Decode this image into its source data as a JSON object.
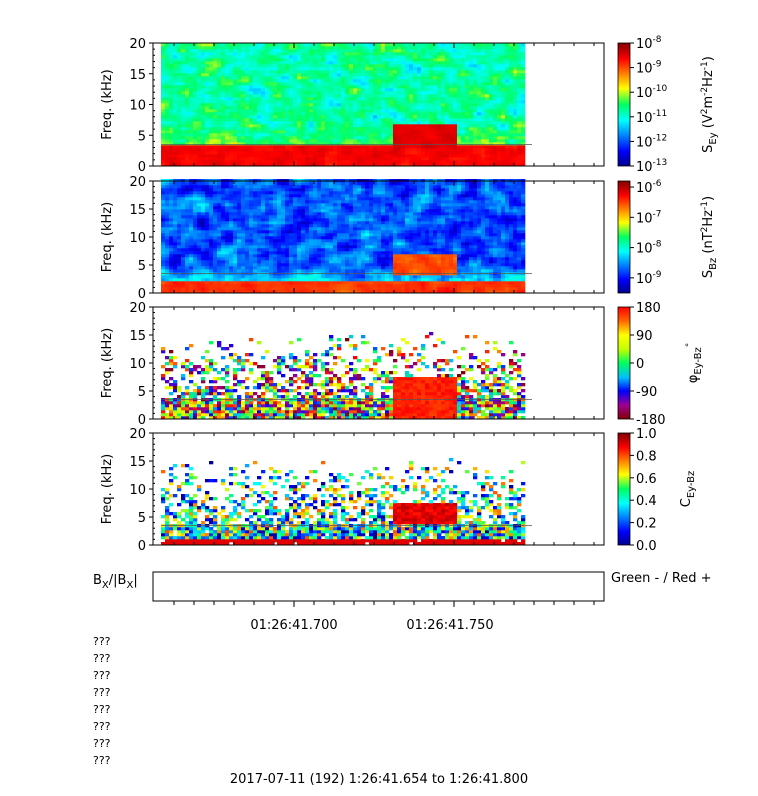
{
  "chart_data": [
    {
      "type": "heatmap",
      "ylabel": "Freq. (kHz)",
      "y_ticks": [
        0,
        5,
        10,
        15,
        20
      ],
      "ylim": [
        0,
        20
      ],
      "colorbar": {
        "scale": "log",
        "tick_labels": [
          "10-8",
          "10-9",
          "10-10",
          "10-11",
          "10-12",
          "10-13"
        ],
        "range_exponents": [
          -13,
          -8
        ],
        "label": {
          "symbol": "S",
          "subscript": "Ey",
          "units_open": "(V",
          "units_sup1": "2",
          "units_mid": "m",
          "units_sup2": "-2",
          "units_hz": "Hz",
          "units_sup3": "-1",
          "units_close": ")"
        }
      },
      "features": {
        "background_level": 0.45,
        "low_band_kHz": [
          0,
          3.5
        ],
        "burst_center_x": 0.72,
        "burst_freq_kHz": [
          3,
          7
        ],
        "reference_line_kHz": 3.5
      }
    },
    {
      "type": "heatmap",
      "ylabel": "Freq. (kHz)",
      "y_ticks": [
        0,
        5,
        10,
        15,
        20
      ],
      "ylim": [
        0,
        20
      ],
      "colorbar": {
        "scale": "log",
        "tick_labels": [
          "10-6",
          "10-7",
          "10-8",
          "10-9"
        ],
        "range_exponents": [
          -9.5,
          -5.8
        ],
        "label": {
          "symbol": "S",
          "subscript": "Bz",
          "units_open": "(nT",
          "units_sup1": "2",
          "units_hz": "Hz",
          "units_sup3": "-1",
          "units_close": ")"
        }
      },
      "features": {
        "background_level": 0.2,
        "low_band_kHz": [
          0,
          2
        ],
        "burst_center_x": 0.72,
        "burst_freq_kHz": [
          3,
          7
        ],
        "reference_line_kHz": 3.5
      }
    },
    {
      "type": "heatmap",
      "ylabel": "Freq. (kHz)",
      "y_ticks": [
        0,
        5,
        10,
        15,
        20
      ],
      "ylim": [
        0,
        20
      ],
      "colorbar": {
        "scale": "linear",
        "tick_labels": [
          "180",
          "90",
          "0",
          "-90",
          "-180"
        ],
        "range": [
          -180,
          180
        ],
        "label": {
          "symbol": "φ",
          "subscript": "Ey-Bz",
          "degree": "°"
        }
      },
      "features": {
        "sparse": true,
        "burst_center_x": 0.72,
        "burst_freq_kHz": [
          0,
          7.5
        ],
        "reference_line_kHz": 3.5
      }
    },
    {
      "type": "heatmap",
      "ylabel": "Freq. (kHz)",
      "y_ticks": [
        0,
        5,
        10,
        15,
        20
      ],
      "ylim": [
        0,
        20
      ],
      "colorbar": {
        "scale": "linear",
        "tick_labels": [
          "1.0",
          "0.8",
          "0.6",
          "0.4",
          "0.2",
          "0.0"
        ],
        "range": [
          0,
          1
        ],
        "label": {
          "symbol": "C",
          "subscript": "Ey-Bz"
        }
      },
      "features": {
        "sparse": true,
        "burst_center_x": 0.72,
        "burst_freq_kHz": [
          3.5,
          7.5
        ],
        "reference_line_kHz": 3.5
      }
    }
  ],
  "bx_panel": {
    "label_main": "B",
    "label_sub1": "X",
    "label_mid": "/|B",
    "label_sub2": "X",
    "label_end": "|",
    "legend": "Green - / Red +"
  },
  "time_axis": {
    "tick_labels": [
      "01:26:41.700",
      "01:26:41.750"
    ]
  },
  "info_lines": [
    "???",
    "???",
    "???",
    "???",
    "???",
    "???",
    "???",
    "???"
  ],
  "footer": "2017-07-11 (192) 1:26:41.654 to 1:26:41.800"
}
